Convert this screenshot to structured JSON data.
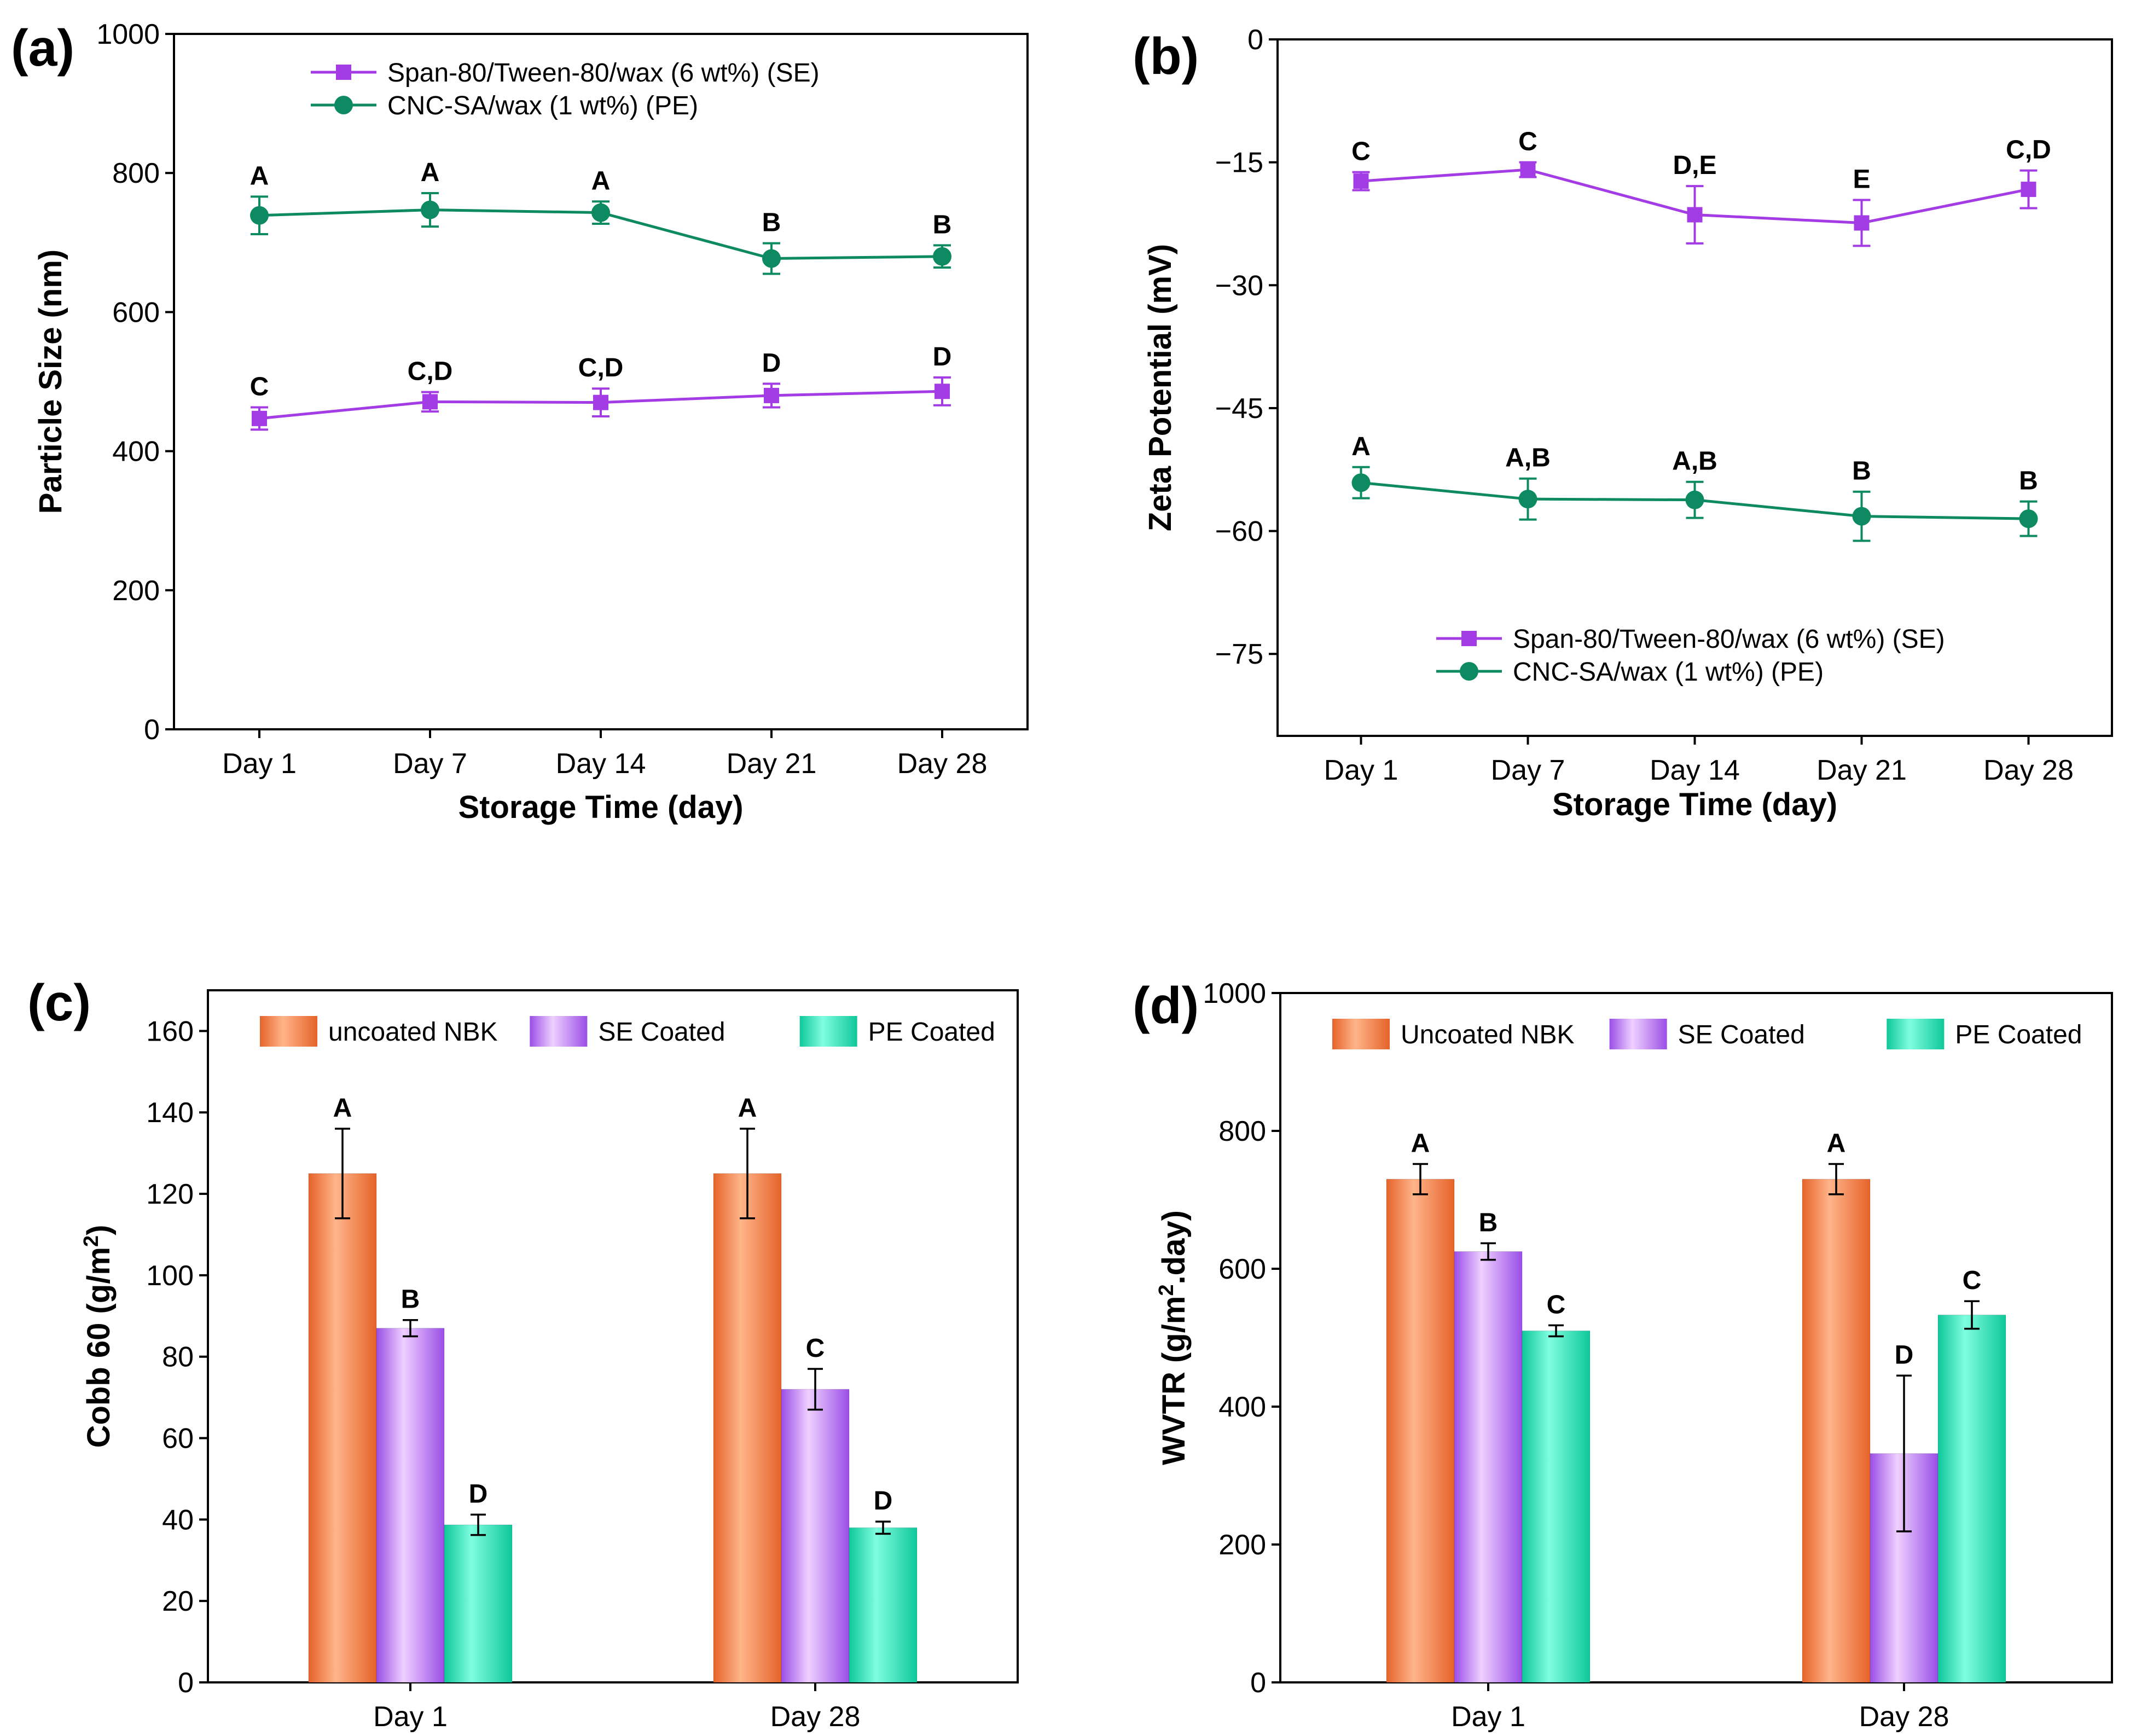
{
  "colors": {
    "se_line": "#a43ce6",
    "pe_line": "#0e8a62",
    "bar_uncoated": "#f7824a",
    "bar_se": "#c08af0",
    "bar_pe": "#25e0b4",
    "axis": "#000000"
  },
  "chart_data": [
    {
      "id": "a",
      "panel_label": "(a)",
      "type": "line",
      "categories": [
        "Day 1",
        "Day 7",
        "Day 14",
        "Day 21",
        "Day 28"
      ],
      "xlabel": "Storage Time (day)",
      "ylabel": "Particle Size (nm)",
      "ylim": [
        0,
        1000
      ],
      "yticks": [
        0,
        200,
        400,
        600,
        800,
        1000
      ],
      "grid": false,
      "legend_position": "top-center",
      "series": [
        {
          "name": "Span-80/Tween-80/wax (6 wt%) (SE)",
          "marker": "square",
          "color_key": "se_line",
          "values": [
            447,
            471,
            470,
            480,
            486
          ],
          "errors": [
            16,
            14,
            20,
            17,
            20
          ],
          "labels": [
            "C",
            "C,D",
            "C,D",
            "D",
            "D"
          ]
        },
        {
          "name": "CNC-SA/wax (1 wt%) (PE)",
          "marker": "circle",
          "color_key": "pe_line",
          "values": [
            739,
            747,
            743,
            677,
            680
          ],
          "errors": [
            27,
            24,
            16,
            22,
            16
          ],
          "labels": [
            "A",
            "A",
            "A",
            "B",
            "B"
          ]
        }
      ]
    },
    {
      "id": "b",
      "panel_label": "(b)",
      "type": "line",
      "categories": [
        "Day 1",
        "Day 7",
        "Day 14",
        "Day 21",
        "Day 28"
      ],
      "xlabel": "Storage Time (day)",
      "ylabel": "Zeta Potential (mV)",
      "ylim": [
        -85,
        0
      ],
      "yticks": [
        0,
        -15,
        -30,
        -45,
        -60,
        -75
      ],
      "grid": false,
      "legend_position": "bottom-center",
      "series": [
        {
          "name": "Span-80/Tween-80/wax (6 wt%) (SE)",
          "marker": "square",
          "color_key": "se_line",
          "values": [
            -17.3,
            -15.9,
            -21.4,
            -22.4,
            -18.3
          ],
          "errors": [
            1.1,
            0.9,
            3.5,
            2.8,
            2.3
          ],
          "labels": [
            "C",
            "C",
            "D,E",
            "E",
            "C,D"
          ]
        },
        {
          "name": "CNC-SA/wax (1 wt%) (PE)",
          "marker": "circle",
          "color_key": "pe_line",
          "values": [
            -54.1,
            -56.1,
            -56.2,
            -58.2,
            -58.5
          ],
          "errors": [
            1.9,
            2.5,
            2.2,
            3.0,
            2.1
          ],
          "labels": [
            "A",
            "A,B",
            "A,B",
            "B",
            "B"
          ]
        }
      ]
    },
    {
      "id": "c",
      "panel_label": "(c)",
      "type": "bar",
      "categories": [
        "Day 1",
        "Day 28"
      ],
      "xlabel": "",
      "ylabel": "Cobb 60 (g/m²)",
      "ylim": [
        0,
        170
      ],
      "yticks": [
        0,
        20,
        40,
        60,
        80,
        100,
        120,
        140,
        160
      ],
      "grid": false,
      "legend_position": "top",
      "series": [
        {
          "name": "uncoated  NBK",
          "color_key": "bar_uncoated",
          "values": [
            125,
            125
          ],
          "errors": [
            11,
            11
          ],
          "labels": [
            "A",
            "A"
          ]
        },
        {
          "name": "SE Coated",
          "color_key": "bar_se",
          "values": [
            87,
            72
          ],
          "errors": [
            2,
            5
          ],
          "labels": [
            "B",
            "C"
          ]
        },
        {
          "name": "PE Coated",
          "color_key": "bar_pe",
          "values": [
            38.7,
            38
          ],
          "errors": [
            2.5,
            1.5
          ],
          "labels": [
            "D",
            "D"
          ]
        }
      ]
    },
    {
      "id": "d",
      "panel_label": "(d)",
      "type": "bar",
      "categories": [
        "Day 1",
        "Day 28"
      ],
      "xlabel": "",
      "ylabel": "WVTR (g/m².day)",
      "ylim": [
        0,
        1000
      ],
      "yticks": [
        0,
        200,
        400,
        600,
        800,
        1000
      ],
      "grid": false,
      "legend_position": "top",
      "series": [
        {
          "name": "Uncoated NBK",
          "color_key": "bar_uncoated",
          "values": [
            730,
            730
          ],
          "errors": [
            22,
            22
          ],
          "labels": [
            "A",
            "A"
          ]
        },
        {
          "name": "SE Coated",
          "color_key": "bar_se",
          "values": [
            625,
            332
          ],
          "errors": [
            12,
            113
          ],
          "labels": [
            "B",
            "D"
          ]
        },
        {
          "name": "PE Coated",
          "color_key": "bar_pe",
          "values": [
            510,
            533
          ],
          "errors": [
            8,
            20
          ],
          "labels": [
            "C",
            "C"
          ]
        }
      ]
    }
  ]
}
